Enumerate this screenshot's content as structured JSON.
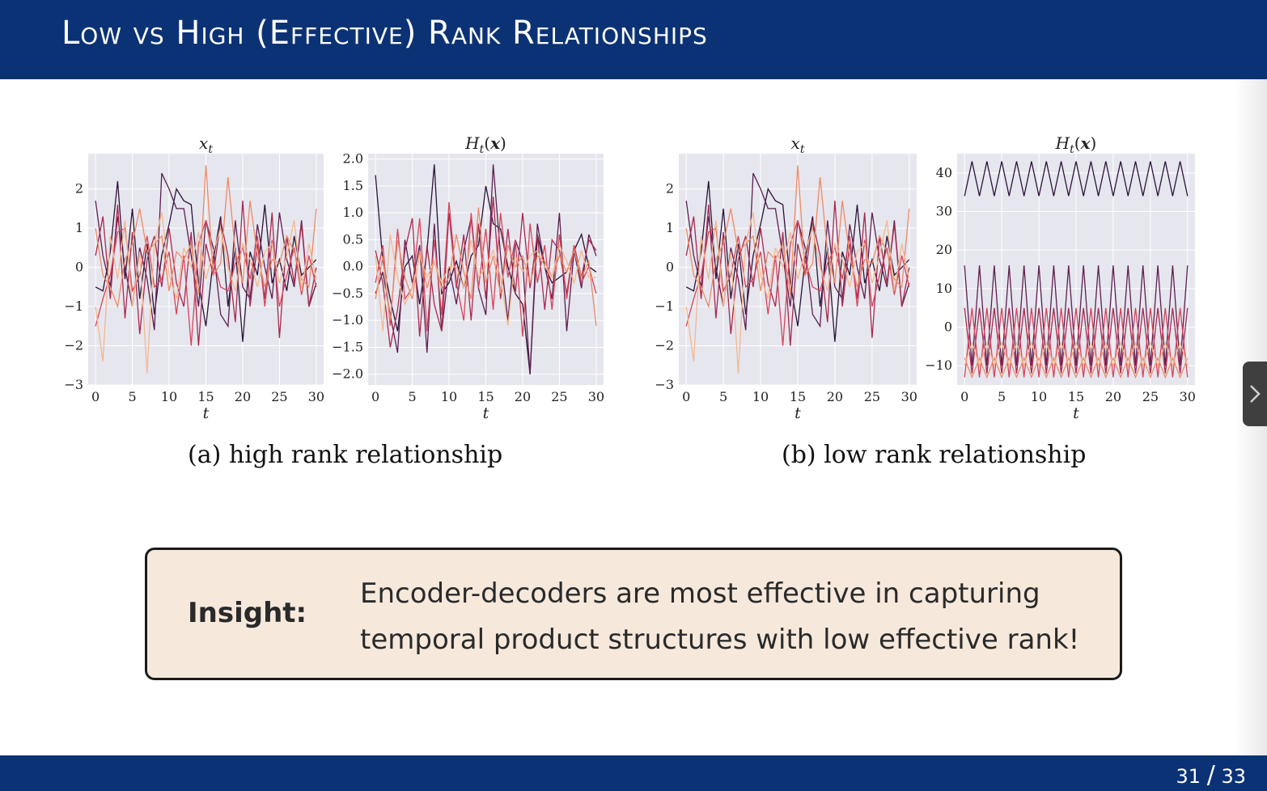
{
  "slide": {
    "title": "Low vs High (Effective) Rank Relationships",
    "page_current": "31",
    "page_separator": "/",
    "page_total": "33"
  },
  "figure": {
    "caption_a": "(a) high rank relationship",
    "caption_b": "(b) low rank relationship"
  },
  "insight": {
    "label": "Insight:",
    "text": "Encoder-decoders are most effective in capturing temporal product structures with low effective rank!"
  },
  "colors": {
    "header": "#0b3275",
    "plot_bg": "#e6e6ee",
    "insight_bg": "#f6e9dc",
    "series": [
      "#2b1438",
      "#5d1f4f",
      "#a8294e",
      "#d6455a",
      "#ee8a66",
      "#f3b88d"
    ]
  },
  "chart_data": [
    {
      "id": "a1",
      "type": "line",
      "title": "x_t",
      "xlabel": "t",
      "xlim": [
        -1,
        31
      ],
      "ylim": [
        -3,
        2.9
      ],
      "xticks": [
        "0",
        "5",
        "10",
        "15",
        "20",
        "25",
        "30"
      ],
      "yticks": [
        "2",
        "1",
        "0",
        "−1",
        "−2",
        "−3"
      ],
      "ytick_values": [
        2,
        1,
        0,
        -1,
        -2,
        -3
      ],
      "series": [
        {
          "values": [
            -0.5,
            -0.6,
            0.4,
            2.2,
            -0.3,
            1.5,
            -0.8,
            0.6,
            -1.2,
            0.3,
            1.1,
            2.0,
            1.7,
            1.6,
            -0.4,
            -1.5,
            0.2,
            1.3,
            -1.0,
            0.5,
            -1.9,
            0.4,
            -0.2,
            1.6,
            -0.4,
            0.2,
            -0.6,
            0.8,
            -0.2,
            0.0,
            0.2
          ]
        },
        {
          "values": [
            1.7,
            0.3,
            -0.5,
            1.3,
            0.0,
            -1.0,
            0.5,
            -0.3,
            -1.6,
            2.4,
            2.0,
            1.5,
            1.5,
            0.3,
            -1.0,
            1.2,
            0.5,
            -1.2,
            -1.5,
            1.2,
            -0.5,
            -0.8,
            1.1,
            0.0,
            -0.8,
            1.4,
            0.2,
            -0.5,
            1.2,
            -1.0,
            -0.4
          ]
        },
        {
          "values": [
            0.3,
            1.3,
            -0.8,
            1.6,
            -1.3,
            0.9,
            -1.7,
            0.2,
            0.8,
            -0.5,
            1.0,
            -0.4,
            -1.0,
            0.9,
            -2.0,
            0.6,
            -0.2,
            1.2,
            0.3,
            -1.4,
            1.7,
            -1.0,
            0.6,
            -0.8,
            1.4,
            -1.8,
            0.8,
            -0.4,
            1.1,
            -1.0,
            0.0
          ]
        },
        {
          "values": [
            -1.5,
            -0.8,
            -0.2,
            0.9,
            1.0,
            -0.6,
            -0.2,
            0.8,
            -0.5,
            -0.3,
            0.4,
            -1.2,
            0.3,
            -2.0,
            0.6,
            1.2,
            0.2,
            -0.5,
            -0.6,
            0.1,
            0.5,
            -0.3,
            0.8,
            -1.0,
            0.7,
            -1.0,
            -0.2,
            0.5,
            -0.7,
            0.3,
            -0.5
          ]
        },
        {
          "values": [
            1.0,
            -0.2,
            -0.5,
            -1.0,
            0.2,
            0.6,
            1.5,
            0.4,
            0.6,
            0.8,
            -0.6,
            0.4,
            0.2,
            0.6,
            -0.7,
            2.6,
            -0.2,
            0.1,
            2.3,
            0.4,
            -0.4,
            1.7,
            0.3,
            -0.5,
            0.2,
            0.1,
            0.8,
            0.4,
            -0.3,
            -0.5,
            1.5
          ]
        },
        {
          "values": [
            -1.0,
            -2.4,
            0.8,
            -0.3,
            1.2,
            -1.0,
            0.4,
            -2.7,
            0.6,
            1.4,
            -0.2,
            -0.8,
            0.5,
            0.0,
            0.9,
            -0.3,
            0.4,
            1.0,
            0.0,
            -0.6,
            0.6,
            0.2,
            -0.5,
            0.4,
            0.6,
            -0.4,
            0.3,
            1.2,
            -0.6,
            0.6,
            -0.3
          ]
        }
      ]
    },
    {
      "id": "a2",
      "type": "line",
      "title": "H_t(x)",
      "xlabel": "t",
      "xlim": [
        -1,
        31
      ],
      "ylim": [
        -2.2,
        2.1
      ],
      "xticks": [
        "0",
        "5",
        "10",
        "15",
        "20",
        "25",
        "30"
      ],
      "yticks": [
        "2.0",
        "1.5",
        "1.0",
        "0.5",
        "0.0",
        "−0.5",
        "−1.0",
        "−1.5",
        "−2.0"
      ],
      "ytick_values": [
        2.0,
        1.5,
        1.0,
        0.5,
        0.0,
        -0.5,
        -1.0,
        -1.5,
        -2.0
      ],
      "series": [
        {
          "values": [
            1.7,
            0.1,
            -0.6,
            -1.2,
            0.0,
            0.2,
            -0.7,
            0.3,
            1.9,
            -0.5,
            -0.3,
            0.1,
            -0.4,
            0.2,
            0.4,
            1.5,
            0.8,
            0.7,
            0.0,
            -0.5,
            -0.7,
            -2.0,
            0.6,
            0.0,
            -0.3,
            -0.2,
            -0.1,
            0.3,
            0.6,
            0.0,
            -0.1
          ]
        },
        {
          "values": [
            -0.5,
            -0.1,
            -0.9,
            -1.6,
            0.5,
            -0.3,
            0.4,
            -1.6,
            0.8,
            -1.2,
            0.0,
            -0.7,
            0.3,
            0.9,
            -0.4,
            -0.9,
            1.9,
            0.2,
            -1.0,
            0.5,
            0.1,
            -2.0,
            0.8,
            0.0,
            -0.6,
            1.0,
            -1.2,
            0.3,
            -0.4,
            0.6,
            0.2
          ]
        },
        {
          "values": [
            0.3,
            -0.3,
            -1.5,
            -0.8,
            0.3,
            0.9,
            -1.3,
            0.4,
            -0.7,
            -1.2,
            1.0,
            -0.4,
            0.6,
            -1.0,
            0.8,
            -0.6,
            1.3,
            -0.6,
            0.7,
            -0.5,
            1.0,
            -0.4,
            0.6,
            -0.8,
            0.5,
            0.3,
            -0.5,
            0.4,
            -0.2,
            0.5,
            0.3
          ]
        },
        {
          "values": [
            -0.3,
            0.4,
            -1.1,
            0.7,
            -0.6,
            -0.4,
            0.9,
            -1.2,
            0.5,
            -0.9,
            1.2,
            -0.3,
            -1.0,
            1.0,
            -0.4,
            0.7,
            -0.8,
            1.0,
            -0.2,
            0.5,
            -1.3,
            0.8,
            -0.3,
            0.4,
            -0.8,
            0.6,
            -0.6,
            0.4,
            -0.3,
            0.0,
            -0.5
          ]
        },
        {
          "values": [
            -0.6,
            0.2,
            -1.0,
            0.5,
            -0.2,
            -0.6,
            0.3,
            -0.4,
            0.1,
            -0.4,
            -0.2,
            0.6,
            -0.1,
            -0.6,
            1.1,
            -0.3,
            0.2,
            -0.5,
            0.4,
            0.0,
            0.2,
            -0.3,
            0.2,
            0.1,
            -0.2,
            0.2,
            -0.1,
            0.3,
            -0.2,
            0.1,
            -1.1
          ]
        },
        {
          "values": [
            0.2,
            -1.2,
            0.6,
            -0.2,
            -0.7,
            -0.4,
            0.2,
            -0.2,
            0.1,
            -0.3,
            0.0,
            0.0,
            -0.4,
            0.5,
            -0.2,
            0.0,
            0.3,
            -0.2,
            -1.1,
            0.2,
            -0.1,
            0.2,
            0.3,
            0.0,
            -0.2,
            0.4,
            0.1,
            -0.3,
            0.3,
            -0.2,
            -0.2
          ]
        }
      ]
    },
    {
      "id": "b1",
      "type": "line",
      "title": "x_t",
      "xlabel": "t",
      "xlim": [
        -1,
        31
      ],
      "ylim": [
        -3,
        2.9
      ],
      "xticks": [
        "0",
        "5",
        "10",
        "15",
        "20",
        "25",
        "30"
      ],
      "yticks": [
        "2",
        "1",
        "0",
        "−1",
        "−2",
        "−3"
      ],
      "ytick_values": [
        2,
        1,
        0,
        -1,
        -2,
        -3
      ],
      "series": [
        {
          "values": [
            -0.5,
            -0.6,
            0.4,
            2.2,
            -0.3,
            1.5,
            -0.8,
            0.6,
            -1.2,
            0.3,
            1.1,
            2.0,
            1.7,
            1.6,
            -0.4,
            -1.5,
            0.2,
            1.3,
            -1.0,
            0.5,
            -1.9,
            0.4,
            -0.2,
            1.6,
            -0.4,
            0.2,
            -0.6,
            0.8,
            -0.2,
            0.0,
            0.2
          ]
        },
        {
          "values": [
            1.7,
            0.3,
            -0.5,
            1.3,
            0.0,
            -1.0,
            0.5,
            -0.3,
            -1.6,
            2.4,
            2.0,
            1.5,
            1.5,
            0.3,
            -1.0,
            1.2,
            0.5,
            -1.2,
            -1.5,
            1.2,
            -0.5,
            -0.8,
            1.1,
            0.0,
            -0.8,
            1.4,
            0.2,
            -0.5,
            1.2,
            -1.0,
            -0.4
          ]
        },
        {
          "values": [
            0.3,
            1.3,
            -0.8,
            1.6,
            -1.3,
            0.9,
            -1.7,
            0.2,
            0.8,
            -0.5,
            1.0,
            -0.4,
            -1.0,
            0.9,
            -2.0,
            0.6,
            -0.2,
            1.2,
            0.3,
            -1.4,
            1.7,
            -1.0,
            0.6,
            -0.8,
            1.4,
            -1.8,
            0.8,
            -0.4,
            1.1,
            -1.0,
            0.0
          ]
        },
        {
          "values": [
            -1.5,
            -0.8,
            -0.2,
            0.9,
            1.0,
            -0.6,
            -0.2,
            0.8,
            -0.5,
            -0.3,
            0.4,
            -1.2,
            0.3,
            -2.0,
            0.6,
            1.2,
            0.2,
            -0.5,
            -0.6,
            0.1,
            0.5,
            -0.3,
            0.8,
            -1.0,
            0.7,
            -1.0,
            -0.2,
            0.5,
            -0.7,
            0.3,
            -0.5
          ]
        },
        {
          "values": [
            1.0,
            -0.2,
            -0.5,
            -1.0,
            0.2,
            0.6,
            1.5,
            0.4,
            0.6,
            0.8,
            -0.6,
            0.4,
            0.2,
            0.6,
            -0.7,
            2.6,
            -0.2,
            0.1,
            2.3,
            0.4,
            -0.4,
            1.7,
            0.3,
            -0.5,
            0.2,
            0.1,
            0.8,
            0.4,
            -0.3,
            -0.5,
            1.5
          ]
        },
        {
          "values": [
            -1.0,
            -2.4,
            0.8,
            -0.3,
            1.2,
            -1.0,
            0.4,
            -2.7,
            0.6,
            1.4,
            -0.2,
            -0.8,
            0.5,
            0.0,
            0.9,
            -0.3,
            0.4,
            1.0,
            0.0,
            -0.6,
            0.6,
            0.2,
            -0.5,
            0.4,
            0.6,
            -0.4,
            0.3,
            1.2,
            -0.6,
            0.6,
            -0.3
          ]
        }
      ]
    },
    {
      "id": "b2",
      "type": "line",
      "title": "H_t(x)",
      "xlabel": "t",
      "xlim": [
        -1,
        31
      ],
      "ylim": [
        -15,
        45
      ],
      "xticks": [
        "0",
        "5",
        "10",
        "15",
        "20",
        "25",
        "30"
      ],
      "yticks": [
        "40",
        "30",
        "20",
        "10",
        "0",
        "−10"
      ],
      "ytick_values": [
        40,
        30,
        20,
        10,
        0,
        -10
      ],
      "series": [
        {
          "values": [
            34,
            43,
            34,
            43,
            34,
            43,
            34,
            43,
            34,
            43,
            34,
            43,
            34,
            43,
            34,
            43,
            34,
            43,
            34,
            43,
            34,
            43,
            34,
            43,
            34,
            43,
            34,
            43,
            34,
            43,
            34
          ]
        },
        {
          "values": [
            16,
            -10,
            16,
            -10,
            16,
            -10,
            16,
            -10,
            16,
            -10,
            16,
            -10,
            16,
            -10,
            16,
            -10,
            16,
            -10,
            16,
            -10,
            16,
            -10,
            16,
            -10,
            16,
            -10,
            16,
            -10,
            16,
            -10,
            16
          ]
        },
        {
          "values": [
            5,
            -12,
            5,
            -12,
            5,
            -12,
            5,
            -12,
            5,
            -12,
            5,
            -12,
            5,
            -12,
            5,
            -12,
            5,
            -12,
            5,
            -12,
            5,
            -12,
            5,
            -12,
            5,
            -12,
            5,
            -12,
            5,
            -12,
            5
          ]
        },
        {
          "values": [
            -13,
            5,
            -13,
            5,
            -13,
            5,
            -13,
            5,
            -13,
            5,
            -13,
            5,
            -13,
            5,
            -13,
            5,
            -13,
            5,
            -13,
            5,
            -13,
            5,
            -13,
            5,
            -13,
            5,
            -13,
            5,
            -13,
            5,
            -13
          ]
        },
        {
          "values": [
            -8,
            -13,
            -8,
            -13,
            -8,
            -13,
            -8,
            -13,
            -8,
            -13,
            -8,
            -13,
            -8,
            -13,
            -8,
            -13,
            -8,
            -13,
            -8,
            -13,
            -8,
            -13,
            -8,
            -13,
            -8,
            -13,
            -8,
            -13,
            -8,
            -13,
            -8
          ]
        },
        {
          "values": [
            -10,
            -4,
            -10,
            -4,
            -10,
            -4,
            -10,
            -4,
            -10,
            -4,
            -10,
            -4,
            -10,
            -4,
            -10,
            -4,
            -10,
            -4,
            -10,
            -4,
            -10,
            -4,
            -10,
            -4,
            -10,
            -4,
            -10,
            -4,
            -10,
            -4,
            -10
          ]
        }
      ]
    }
  ]
}
